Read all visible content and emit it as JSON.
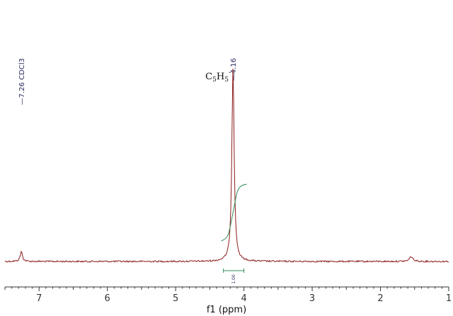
{
  "chart_data": {
    "type": "line",
    "xlabel": "f1 (ppm)",
    "xlim": [
      7.5,
      1.0
    ],
    "x_reversed": true,
    "x_ticks": [
      7,
      6,
      5,
      4,
      3,
      2,
      1
    ],
    "grid": false,
    "series": [
      {
        "color": "#8b1a1a",
        "baseline": 0.02,
        "peaks": [
          {
            "ppm": 7.26,
            "height": 0.05,
            "width": 0.02
          },
          {
            "ppm": 4.16,
            "height": 1.0,
            "width": 0.02
          },
          {
            "ppm": 1.55,
            "height": 0.025,
            "width": 0.03
          }
        ]
      }
    ],
    "peak_labels": [
      {
        "ppm": 7.26,
        "text": "7.26 CDCl3"
      },
      {
        "ppm": 4.16,
        "text": "4.16"
      }
    ],
    "integrals": [
      {
        "from_ppm": 4.3,
        "to_ppm": 4.0,
        "value": "1.00"
      }
    ],
    "annotations": [
      {
        "ppm": 4.16,
        "text": "C",
        "sub1": "5",
        "mid": "H",
        "sub2": "5",
        "sup": "-"
      }
    ],
    "colors": {
      "spectrum": "#8b1a1a",
      "integral": "#2e8b57",
      "peak_label": "#2a2a60",
      "axis": "#333333"
    }
  }
}
